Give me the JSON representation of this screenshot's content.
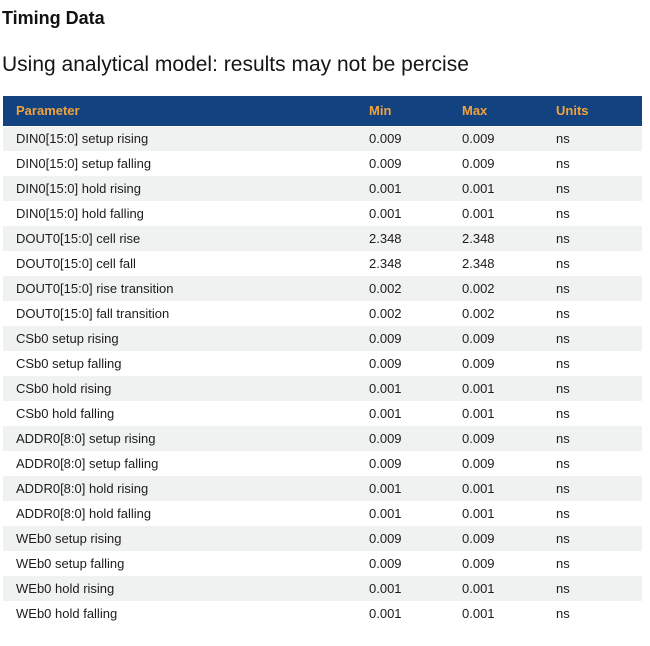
{
  "page": {
    "title": "Timing Data",
    "subtitle": "Using analytical model: results may not be percise"
  },
  "table": {
    "columns": [
      "Parameter",
      "Min",
      "Max",
      "Units"
    ],
    "rows": [
      {
        "parameter": "DIN0[15:0] setup rising",
        "min": "0.009",
        "max": "0.009",
        "units": "ns"
      },
      {
        "parameter": "DIN0[15:0] setup falling",
        "min": "0.009",
        "max": "0.009",
        "units": "ns"
      },
      {
        "parameter": "DIN0[15:0] hold rising",
        "min": "0.001",
        "max": "0.001",
        "units": "ns"
      },
      {
        "parameter": "DIN0[15:0] hold falling",
        "min": "0.001",
        "max": "0.001",
        "units": "ns"
      },
      {
        "parameter": "DOUT0[15:0] cell rise",
        "min": "2.348",
        "max": "2.348",
        "units": "ns"
      },
      {
        "parameter": "DOUT0[15:0] cell fall",
        "min": "2.348",
        "max": "2.348",
        "units": "ns"
      },
      {
        "parameter": "DOUT0[15:0] rise transition",
        "min": "0.002",
        "max": "0.002",
        "units": "ns"
      },
      {
        "parameter": "DOUT0[15:0] fall transition",
        "min": "0.002",
        "max": "0.002",
        "units": "ns"
      },
      {
        "parameter": "CSb0 setup rising",
        "min": "0.009",
        "max": "0.009",
        "units": "ns"
      },
      {
        "parameter": "CSb0 setup falling",
        "min": "0.009",
        "max": "0.009",
        "units": "ns"
      },
      {
        "parameter": "CSb0 hold rising",
        "min": "0.001",
        "max": "0.001",
        "units": "ns"
      },
      {
        "parameter": "CSb0 hold falling",
        "min": "0.001",
        "max": "0.001",
        "units": "ns"
      },
      {
        "parameter": "ADDR0[8:0] setup rising",
        "min": "0.009",
        "max": "0.009",
        "units": "ns"
      },
      {
        "parameter": "ADDR0[8:0] setup falling",
        "min": "0.009",
        "max": "0.009",
        "units": "ns"
      },
      {
        "parameter": "ADDR0[8:0] hold rising",
        "min": "0.001",
        "max": "0.001",
        "units": "ns"
      },
      {
        "parameter": "ADDR0[8:0] hold falling",
        "min": "0.001",
        "max": "0.001",
        "units": "ns"
      },
      {
        "parameter": "WEb0 setup rising",
        "min": "0.009",
        "max": "0.009",
        "units": "ns"
      },
      {
        "parameter": "WEb0 setup falling",
        "min": "0.009",
        "max": "0.009",
        "units": "ns"
      },
      {
        "parameter": "WEb0 hold rising",
        "min": "0.001",
        "max": "0.001",
        "units": "ns"
      },
      {
        "parameter": "WEb0 hold falling",
        "min": "0.001",
        "max": "0.001",
        "units": "ns"
      }
    ],
    "colors": {
      "header_bg": "#124280",
      "header_text": "#f0a33c",
      "row_alt_bg": "#f0f1f1",
      "row_bg": "#ffffff",
      "row_text": "#1c1c1c"
    }
  }
}
